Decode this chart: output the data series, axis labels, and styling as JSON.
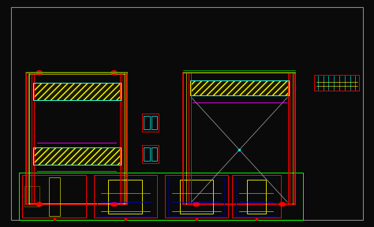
{
  "bg_color": "#0a0a0a",
  "red": "#ff0000",
  "green": "#00ff00",
  "yellow": "#ffff00",
  "cyan": "#00ffff",
  "magenta": "#ff00ff",
  "blue": "#0000ff",
  "white": "#ffffff",
  "orange": "#ff8800",
  "gray": "#aaaaaa",
  "dark_yellow": "#cccc00"
}
